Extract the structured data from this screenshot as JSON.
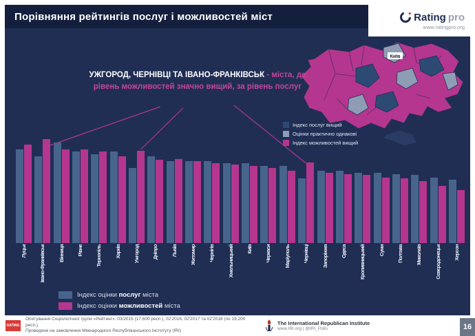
{
  "header": {
    "title": "Порівняння рейтингів послуг і можливостей міст",
    "brand_main": "Rating",
    "brand_sub": "pro",
    "brand_url": "www.ratingpro.org"
  },
  "annotation": {
    "white_part": "УЖГОРОД, ЧЕРНІВЦІ ТА ІВАНО-ФРАНКІВСЬК",
    "pink_part": " - міста, де рівень можливостей значно вищий, за рівень послуг"
  },
  "map": {
    "legend": [
      {
        "type": "srv",
        "label": "Індекс послуг вищий",
        "color": "#2c4a74"
      },
      {
        "type": "eq",
        "label": "Оцінки практично однакові",
        "color": "#8e9db4"
      },
      {
        "type": "opp",
        "label": "Індекс можливостей вищий",
        "color": "#b5368f"
      }
    ],
    "kyiv_label": "Київ"
  },
  "chart_legend": [
    {
      "pre": "Індекс оцінки ",
      "bold": "послуг",
      "post": " міста"
    },
    {
      "pre": "Індекс оцінки ",
      "bold": "можливостей",
      "post": " міста"
    }
  ],
  "chart_data": {
    "type": "bar",
    "categories": [
      "Луцьк",
      "Івано-Франківськ",
      "Вінниця",
      "Рівне",
      "Тернопіль",
      "Харків",
      "Ужгород",
      "Дніпро",
      "Львів",
      "Житомир",
      "Чернігів",
      "Хмельницький",
      "Київ",
      "Черкаси",
      "Маріуполь",
      "Чернівці",
      "Запоріжжя",
      "Одеса",
      "Кропивницький",
      "Суми",
      "Полтава",
      "Миколаїв",
      "Сєвєродонецьк",
      "Херсон"
    ],
    "series": [
      {
        "name": "Індекс оцінки послуг міста",
        "color": "#47648c",
        "values": [
          80,
          74,
          86,
          78,
          76,
          78,
          64,
          74,
          70,
          70,
          70,
          68,
          68,
          66,
          66,
          55,
          62,
          62,
          60,
          60,
          59,
          58,
          56,
          54
        ]
      },
      {
        "name": "Індекс оцінки можливостей міста",
        "color": "#b5368f",
        "values": [
          84,
          89,
          80,
          80,
          78,
          74,
          79,
          71,
          72,
          70,
          68,
          67,
          66,
          64,
          62,
          69,
          60,
          59,
          58,
          56,
          55,
          53,
          49,
          45
        ]
      }
    ],
    "ylim": [
      0,
      100
    ],
    "grid": false,
    "legend_position": "bottom-left"
  },
  "footer": {
    "logo_text": "RATING",
    "source_line1": "Опитування Соціологічної групи «Рейтинг»: 03/2015 (17,600 респ.), 02'2016, 02'2017 та 02'2018 (по 19,200 респ.).",
    "source_line2": "Проведене на замовлення Міжнародного Республіканського Інституту (IRI)",
    "iri_name": "The International Republican Institute",
    "iri_url": "www.IRI.org | @IRI_Polls",
    "page_number": "16"
  },
  "colors": {
    "background": "#202e54",
    "header_bar": "#141f3d",
    "accent_magenta": "#b5368f",
    "bar_blue": "#47648c"
  }
}
